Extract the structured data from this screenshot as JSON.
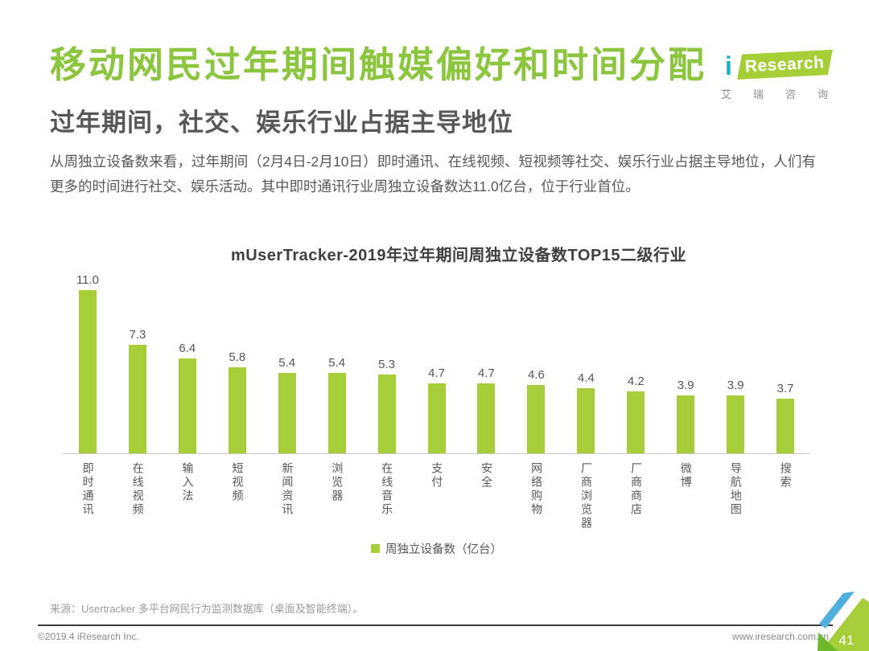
{
  "header": {
    "title": "移动网民过年期间触媒偏好和时间分配",
    "subtitle": "过年期间，社交、娱乐行业占据主导地位",
    "body": "从周独立设备数来看，过年期间（2月4日-2月10日）即时通讯、在线视频、短视频等社交、娱乐行业占据主导地位，人们有更多的时间进行社交、娱乐活动。其中即时通讯行业周独立设备数达11.0亿台，位于行业首位。"
  },
  "logo": {
    "i_mark": "i",
    "wordmark": "Research",
    "cn_name": "艾瑞咨询"
  },
  "chart_data": {
    "type": "bar",
    "title": "mUserTracker-2019年过年期间周独立设备数TOP15二级行业",
    "categories": [
      "即时通讯",
      "在线视频",
      "输入法",
      "短视频",
      "新闻资讯",
      "浏览器",
      "在线音乐",
      "支付",
      "安全",
      "网络购物",
      "厂商浏览器",
      "厂商商店",
      "微博",
      "导航地图",
      "搜索"
    ],
    "values": [
      11.0,
      7.3,
      6.4,
      5.8,
      5.4,
      5.4,
      5.3,
      4.7,
      4.7,
      4.6,
      4.4,
      4.2,
      3.9,
      3.9,
      3.7
    ],
    "unit": "亿台",
    "legend": "周独立设备数（亿台）",
    "xlabel": "",
    "ylabel": "",
    "ylim": [
      0,
      11.5
    ],
    "grid": false,
    "legend_position": "bottom",
    "bar_color": "#A5CE39",
    "value_labels": true
  },
  "source": "来源：Usertracker 多平台网民行为监测数据库（桌面及智能终端）。",
  "footer": {
    "copyright": "©2019.4 iResearch Inc.",
    "website": "www.iresearch.com.cn",
    "page_number": "41"
  },
  "colors": {
    "title_green": "#8CC63F",
    "bar_green": "#A5CE39",
    "logo_green": "#A6CE37",
    "logo_teal": "#1CAEC5",
    "corner_blue": "#4FB0DD",
    "corner_light_green": "#A5CE39",
    "corner_dark_green": "#6EB92B",
    "text_dark": "#595757",
    "text_light": "#9B9B9B"
  }
}
